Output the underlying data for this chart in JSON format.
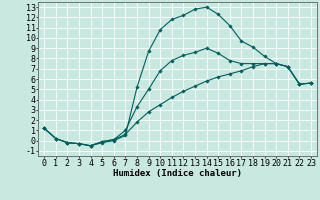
{
  "xlabel": "Humidex (Indice chaleur)",
  "xlim": [
    -0.5,
    23.5
  ],
  "ylim": [
    -1.5,
    13.5
  ],
  "xticks": [
    0,
    1,
    2,
    3,
    4,
    5,
    6,
    7,
    8,
    9,
    10,
    11,
    12,
    13,
    14,
    15,
    16,
    17,
    18,
    19,
    20,
    21,
    22,
    23
  ],
  "yticks": [
    -1,
    0,
    1,
    2,
    3,
    4,
    5,
    6,
    7,
    8,
    9,
    10,
    11,
    12,
    13
  ],
  "bg_color": "#c8e8e0",
  "grid_color": "#ffffff",
  "line_color": "#006060",
  "line1_x": [
    0,
    1,
    2,
    3,
    4,
    5,
    6,
    7,
    8,
    9,
    10,
    11,
    12,
    13,
    14,
    15,
    16,
    17,
    18,
    19,
    20,
    21,
    22,
    23
  ],
  "line1_y": [
    1.2,
    0.2,
    -0.2,
    -0.3,
    -0.5,
    -0.2,
    0.0,
    0.5,
    5.2,
    8.7,
    10.8,
    11.8,
    12.2,
    12.8,
    13.0,
    12.3,
    11.2,
    9.7,
    9.1,
    8.2,
    7.5,
    7.2,
    5.5,
    5.6
  ],
  "line2_x": [
    0,
    1,
    2,
    3,
    4,
    5,
    6,
    7,
    8,
    9,
    10,
    11,
    12,
    13,
    14,
    15,
    16,
    17,
    18,
    19,
    20,
    21,
    22,
    23
  ],
  "line2_y": [
    1.2,
    0.2,
    -0.2,
    -0.3,
    -0.5,
    -0.1,
    0.1,
    1.0,
    3.3,
    5.0,
    6.8,
    7.8,
    8.3,
    8.6,
    9.0,
    8.5,
    7.8,
    7.5,
    7.5,
    7.5,
    7.5,
    7.2,
    5.5,
    5.6
  ],
  "line3_x": [
    0,
    1,
    2,
    3,
    4,
    5,
    6,
    7,
    8,
    9,
    10,
    11,
    12,
    13,
    14,
    15,
    16,
    17,
    18,
    19,
    20,
    21,
    22,
    23
  ],
  "line3_y": [
    1.2,
    0.2,
    -0.2,
    -0.3,
    -0.5,
    -0.1,
    0.1,
    0.6,
    1.8,
    2.8,
    3.5,
    4.2,
    4.8,
    5.3,
    5.8,
    6.2,
    6.5,
    6.8,
    7.2,
    7.5,
    7.5,
    7.2,
    5.5,
    5.6
  ],
  "marker": "D",
  "marker_size": 1.8,
  "linewidth": 0.8,
  "tick_fontsize": 6,
  "label_fontsize": 6.5
}
